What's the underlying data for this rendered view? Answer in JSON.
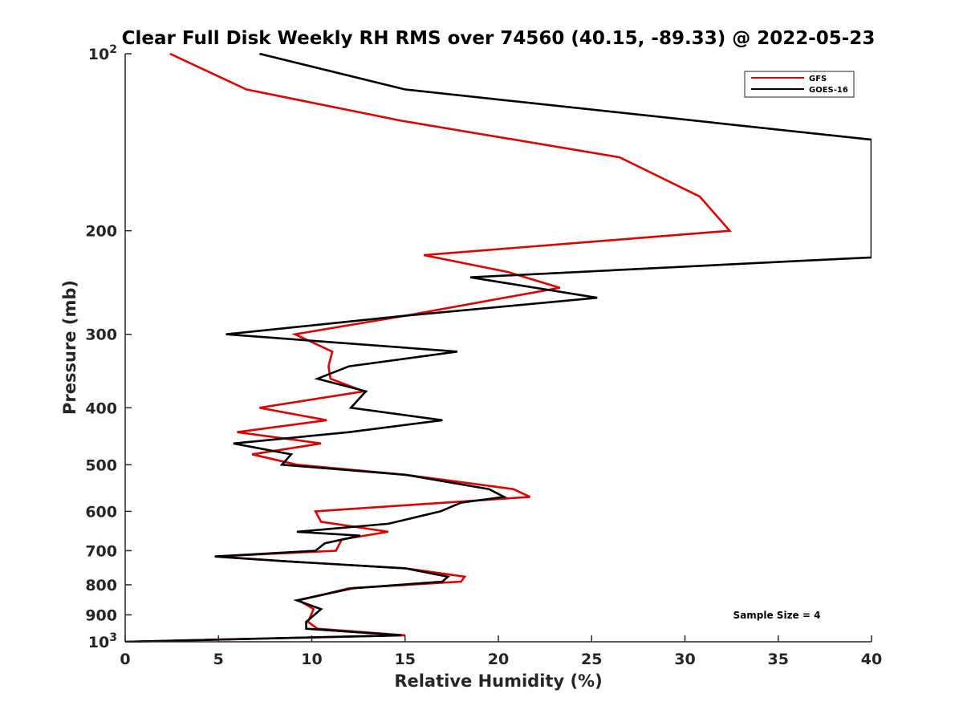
{
  "chart_data": {
    "type": "line",
    "title": "Clear Full Disk Weekly RH RMS over 74560 (40.15, -89.33) @ 2022-05-23",
    "xlabel": "Relative Humidity (%)",
    "ylabel": "Pressure (mb)",
    "xlim": [
      0,
      40
    ],
    "ylim": [
      100,
      1000
    ],
    "y_scale": "log",
    "y_reversed": true,
    "x_ticks": [
      "0",
      "5",
      "10",
      "15",
      "20",
      "25",
      "30",
      "35",
      "40"
    ],
    "y_ticks": [
      {
        "value": 100,
        "base": "10",
        "exp": "2"
      },
      {
        "value": 200,
        "label": "200"
      },
      {
        "value": 300,
        "label": "300"
      },
      {
        "value": 400,
        "label": "400"
      },
      {
        "value": 500,
        "label": "500"
      },
      {
        "value": 600,
        "label": "600"
      },
      {
        "value": 700,
        "label": "700"
      },
      {
        "value": 800,
        "label": "800"
      },
      {
        "value": 900,
        "label": "900"
      },
      {
        "value": 1000,
        "base": "10",
        "exp": "3"
      }
    ],
    "grid": false,
    "legend_position": "top-right",
    "annotation": "Sample Size = 4",
    "series": [
      {
        "name": "GFS",
        "color": "#dd0000",
        "points": [
          [
            2.4,
            100
          ],
          [
            6.5,
            115
          ],
          [
            14.8,
            130
          ],
          [
            26.5,
            150
          ],
          [
            30.8,
            175
          ],
          [
            32.4,
            200
          ],
          [
            16.0,
            220
          ],
          [
            20.5,
            235
          ],
          [
            23.3,
            250
          ],
          [
            15.0,
            279
          ],
          [
            9.1,
            300
          ],
          [
            11.1,
            321
          ],
          [
            10.9,
            340
          ],
          [
            11.0,
            357
          ],
          [
            12.8,
            375
          ],
          [
            7.2,
            400
          ],
          [
            10.8,
            420
          ],
          [
            6.0,
            440
          ],
          [
            10.5,
            460
          ],
          [
            6.8,
            480
          ],
          [
            9.2,
            500
          ],
          [
            15.0,
            520
          ],
          [
            20.8,
            550
          ],
          [
            21.7,
            567
          ],
          [
            10.2,
            600
          ],
          [
            10.5,
            625
          ],
          [
            14.1,
            650
          ],
          [
            11.6,
            670
          ],
          [
            11.3,
            700
          ],
          [
            4.8,
            716
          ],
          [
            8.7,
            730
          ],
          [
            15.0,
            750
          ],
          [
            18.2,
            775
          ],
          [
            18.0,
            790
          ],
          [
            12.0,
            811
          ],
          [
            10.5,
            833
          ],
          [
            9.3,
            850
          ],
          [
            10.1,
            880
          ],
          [
            9.8,
            925
          ],
          [
            10.3,
            950
          ],
          [
            15.0,
            975
          ],
          [
            0,
            1000
          ]
        ]
      },
      {
        "name": "GOES-16",
        "color": "#000000",
        "points": [
          [
            7.2,
            100
          ],
          [
            15.0,
            115
          ],
          [
            40.0,
            140
          ],
          [
            40.0,
            222
          ],
          [
            38.7,
            223
          ],
          [
            18.5,
            240
          ],
          [
            25.3,
            260
          ],
          [
            15.0,
            279
          ],
          [
            5.4,
            300
          ],
          [
            17.8,
            321
          ],
          [
            12.0,
            340
          ],
          [
            10.3,
            357
          ],
          [
            12.9,
            375
          ],
          [
            12.1,
            400
          ],
          [
            17.0,
            420
          ],
          [
            12.0,
            440
          ],
          [
            5.8,
            460
          ],
          [
            8.9,
            480
          ],
          [
            8.4,
            500
          ],
          [
            15.0,
            520
          ],
          [
            19.5,
            550
          ],
          [
            20.3,
            567
          ],
          [
            18.0,
            580
          ],
          [
            16.9,
            600
          ],
          [
            14.1,
            630
          ],
          [
            9.2,
            650
          ],
          [
            12.6,
            660
          ],
          [
            10.7,
            680
          ],
          [
            10.2,
            700
          ],
          [
            4.8,
            716
          ],
          [
            8.7,
            730
          ],
          [
            15.0,
            750
          ],
          [
            17.3,
            775
          ],
          [
            17.0,
            790
          ],
          [
            12.2,
            811
          ],
          [
            10.5,
            833
          ],
          [
            9.2,
            850
          ],
          [
            10.5,
            880
          ],
          [
            9.7,
            925
          ],
          [
            9.7,
            950
          ],
          [
            14.8,
            975
          ],
          [
            0,
            1000
          ]
        ]
      }
    ]
  }
}
